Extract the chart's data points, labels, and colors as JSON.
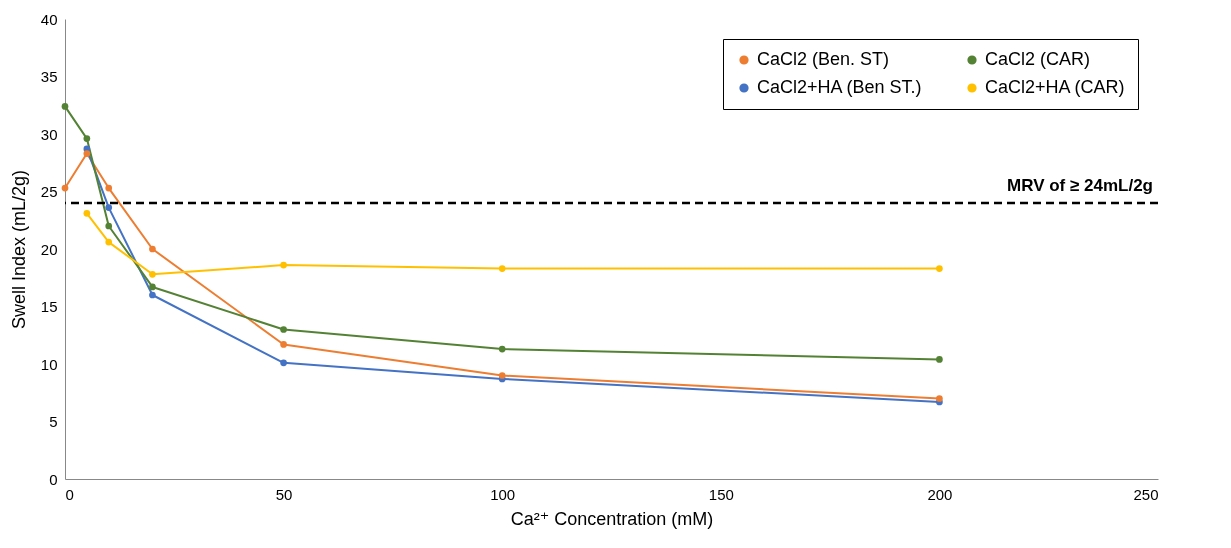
{
  "chart_data": {
    "type": "line",
    "xlabel": "Ca²⁺ Concentration (mM)",
    "ylabel": "Swell Index (mL/2g)",
    "xlim": [
      0,
      250
    ],
    "xticks": [
      0,
      50,
      100,
      150,
      200,
      250
    ],
    "ylim": [
      0,
      40
    ],
    "yticks": [
      0,
      5,
      10,
      15,
      20,
      25,
      30,
      35,
      40
    ],
    "grid": false,
    "legend": "top right",
    "marker": "circle",
    "line_style": "solid",
    "series": [
      {
        "name": "CaCl2 (Ben. ST)",
        "color": "#ed7d31",
        "x": [
          0,
          5,
          10,
          20,
          50,
          100,
          200
        ],
        "values": [
          25.3,
          28.3,
          25.3,
          20,
          11.7,
          9,
          7
        ]
      },
      {
        "name": "CaCl2+HA (Ben ST.)",
        "color": "#4472c4",
        "x": [
          5,
          10,
          20,
          50,
          100,
          200
        ],
        "values": [
          28.7,
          23.6,
          16,
          10.1,
          8.7,
          6.7
        ]
      },
      {
        "name": "CaCl2 (CAR)",
        "color": "#548235",
        "x": [
          0,
          5,
          10,
          20,
          50,
          100,
          200
        ],
        "values": [
          32.4,
          29.6,
          22,
          16.7,
          13,
          11.3,
          10.4
        ]
      },
      {
        "name": "CaCl2+HA (CAR)",
        "color": "#ffc000",
        "x": [
          5,
          10,
          20,
          50,
          100,
          200
        ],
        "values": [
          23.1,
          20.6,
          17.8,
          18.6,
          18.3,
          18.3
        ]
      }
    ],
    "ref_lines": [
      {
        "axis": "y",
        "value": 24,
        "label": "MRV of ≥ 24mL/2g",
        "color": "#000000",
        "line_style": "dashed"
      }
    ]
  }
}
